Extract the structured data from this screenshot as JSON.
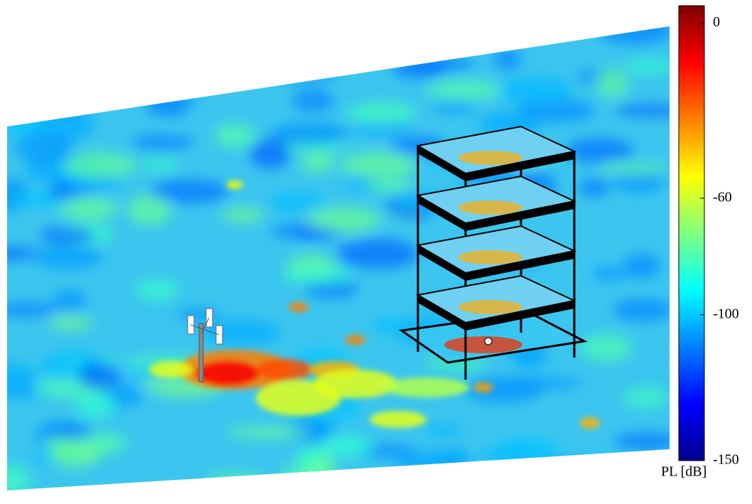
{
  "chart_data": {
    "type": "heatmap",
    "colormap": "jet",
    "ylabel": "PL [dB]",
    "ylim": [
      -150,
      6
    ],
    "yticks": [
      -150,
      -100,
      -60,
      0
    ]
  }
}
